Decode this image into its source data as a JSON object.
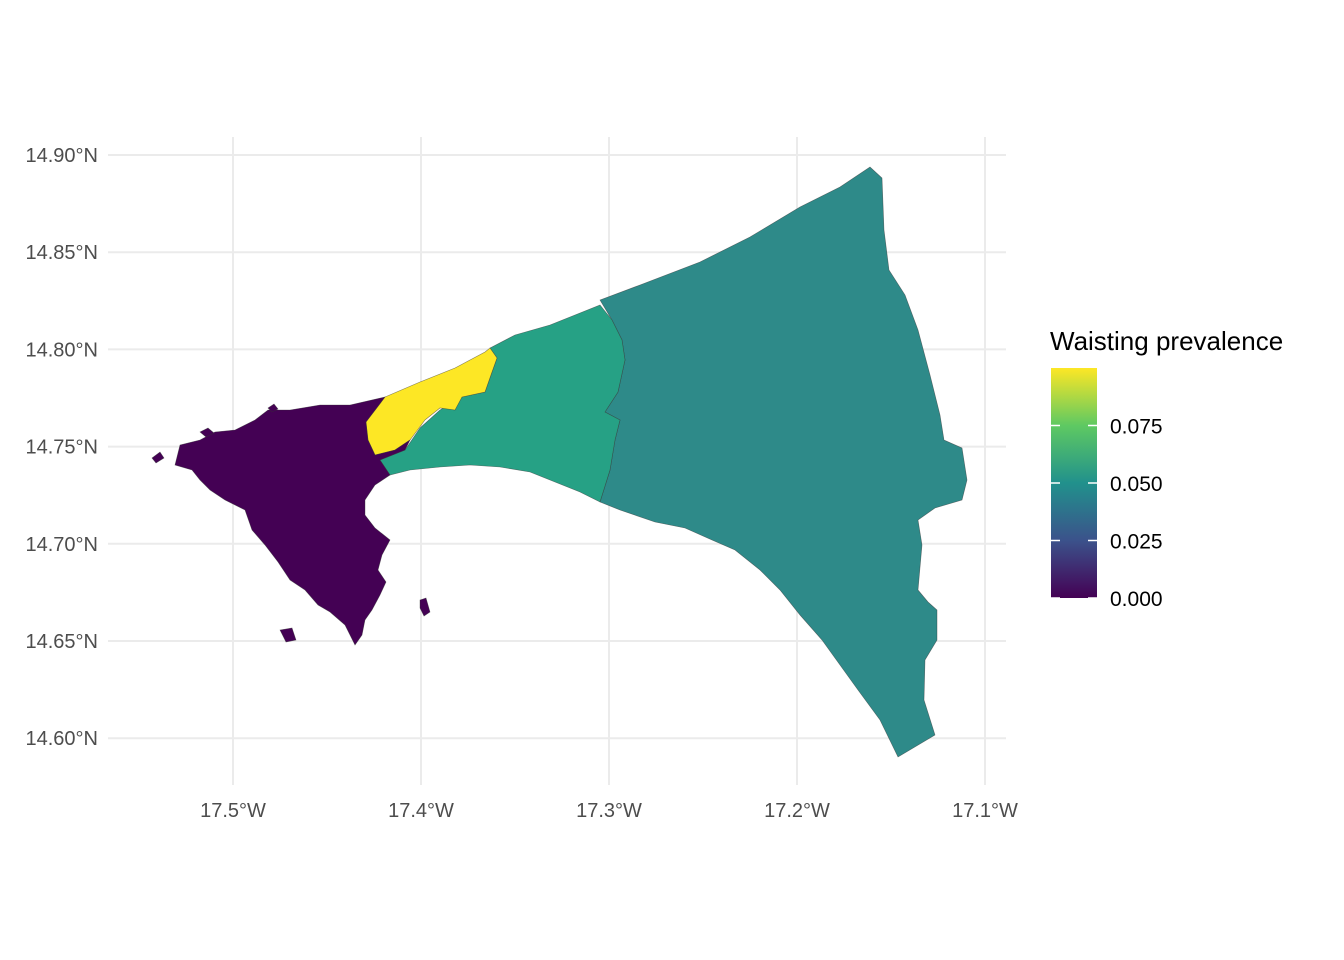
{
  "chart_data": {
    "type": "choropleth",
    "title": "",
    "xlabel": "",
    "ylabel": "",
    "xlim": [
      -17.56,
      -17.09
    ],
    "ylim": [
      14.58,
      14.905
    ],
    "grid": true,
    "x_ticks": [
      {
        "value": -17.5,
        "label": "17.5°W"
      },
      {
        "value": -17.4,
        "label": "17.4°W"
      },
      {
        "value": -17.3,
        "label": "17.3°W"
      },
      {
        "value": -17.2,
        "label": "17.2°W"
      },
      {
        "value": -17.1,
        "label": "17.1°W"
      }
    ],
    "y_ticks": [
      {
        "value": 14.9,
        "label": "14.90°N"
      },
      {
        "value": 14.85,
        "label": "14.85°N"
      },
      {
        "value": 14.8,
        "label": "14.80°N"
      },
      {
        "value": 14.75,
        "label": "14.75°N"
      },
      {
        "value": 14.7,
        "label": "14.70°N"
      },
      {
        "value": 14.65,
        "label": "14.65°N"
      },
      {
        "value": 14.6,
        "label": "14.60°N"
      }
    ],
    "regions": [
      {
        "id": "region-west",
        "value": 0.0,
        "color": "#440154"
      },
      {
        "id": "region-north-central",
        "value": 0.1,
        "color": "#fde725"
      },
      {
        "id": "region-central",
        "value": 0.06,
        "color": "#26a185"
      },
      {
        "id": "region-east",
        "value": 0.05,
        "color": "#2e8a89"
      }
    ],
    "legend": {
      "title": "Waisting prevalence",
      "position": "right",
      "range": [
        0.0,
        0.1
      ],
      "colors": [
        "#440154",
        "#3b528b",
        "#21918c",
        "#5ec962",
        "#fde725"
      ],
      "breaks": [
        {
          "value": 0.075,
          "label": "0.075"
        },
        {
          "value": 0.05,
          "label": "0.050"
        },
        {
          "value": 0.025,
          "label": "0.025"
        },
        {
          "value": 0.0,
          "label": "0.000"
        }
      ]
    }
  }
}
